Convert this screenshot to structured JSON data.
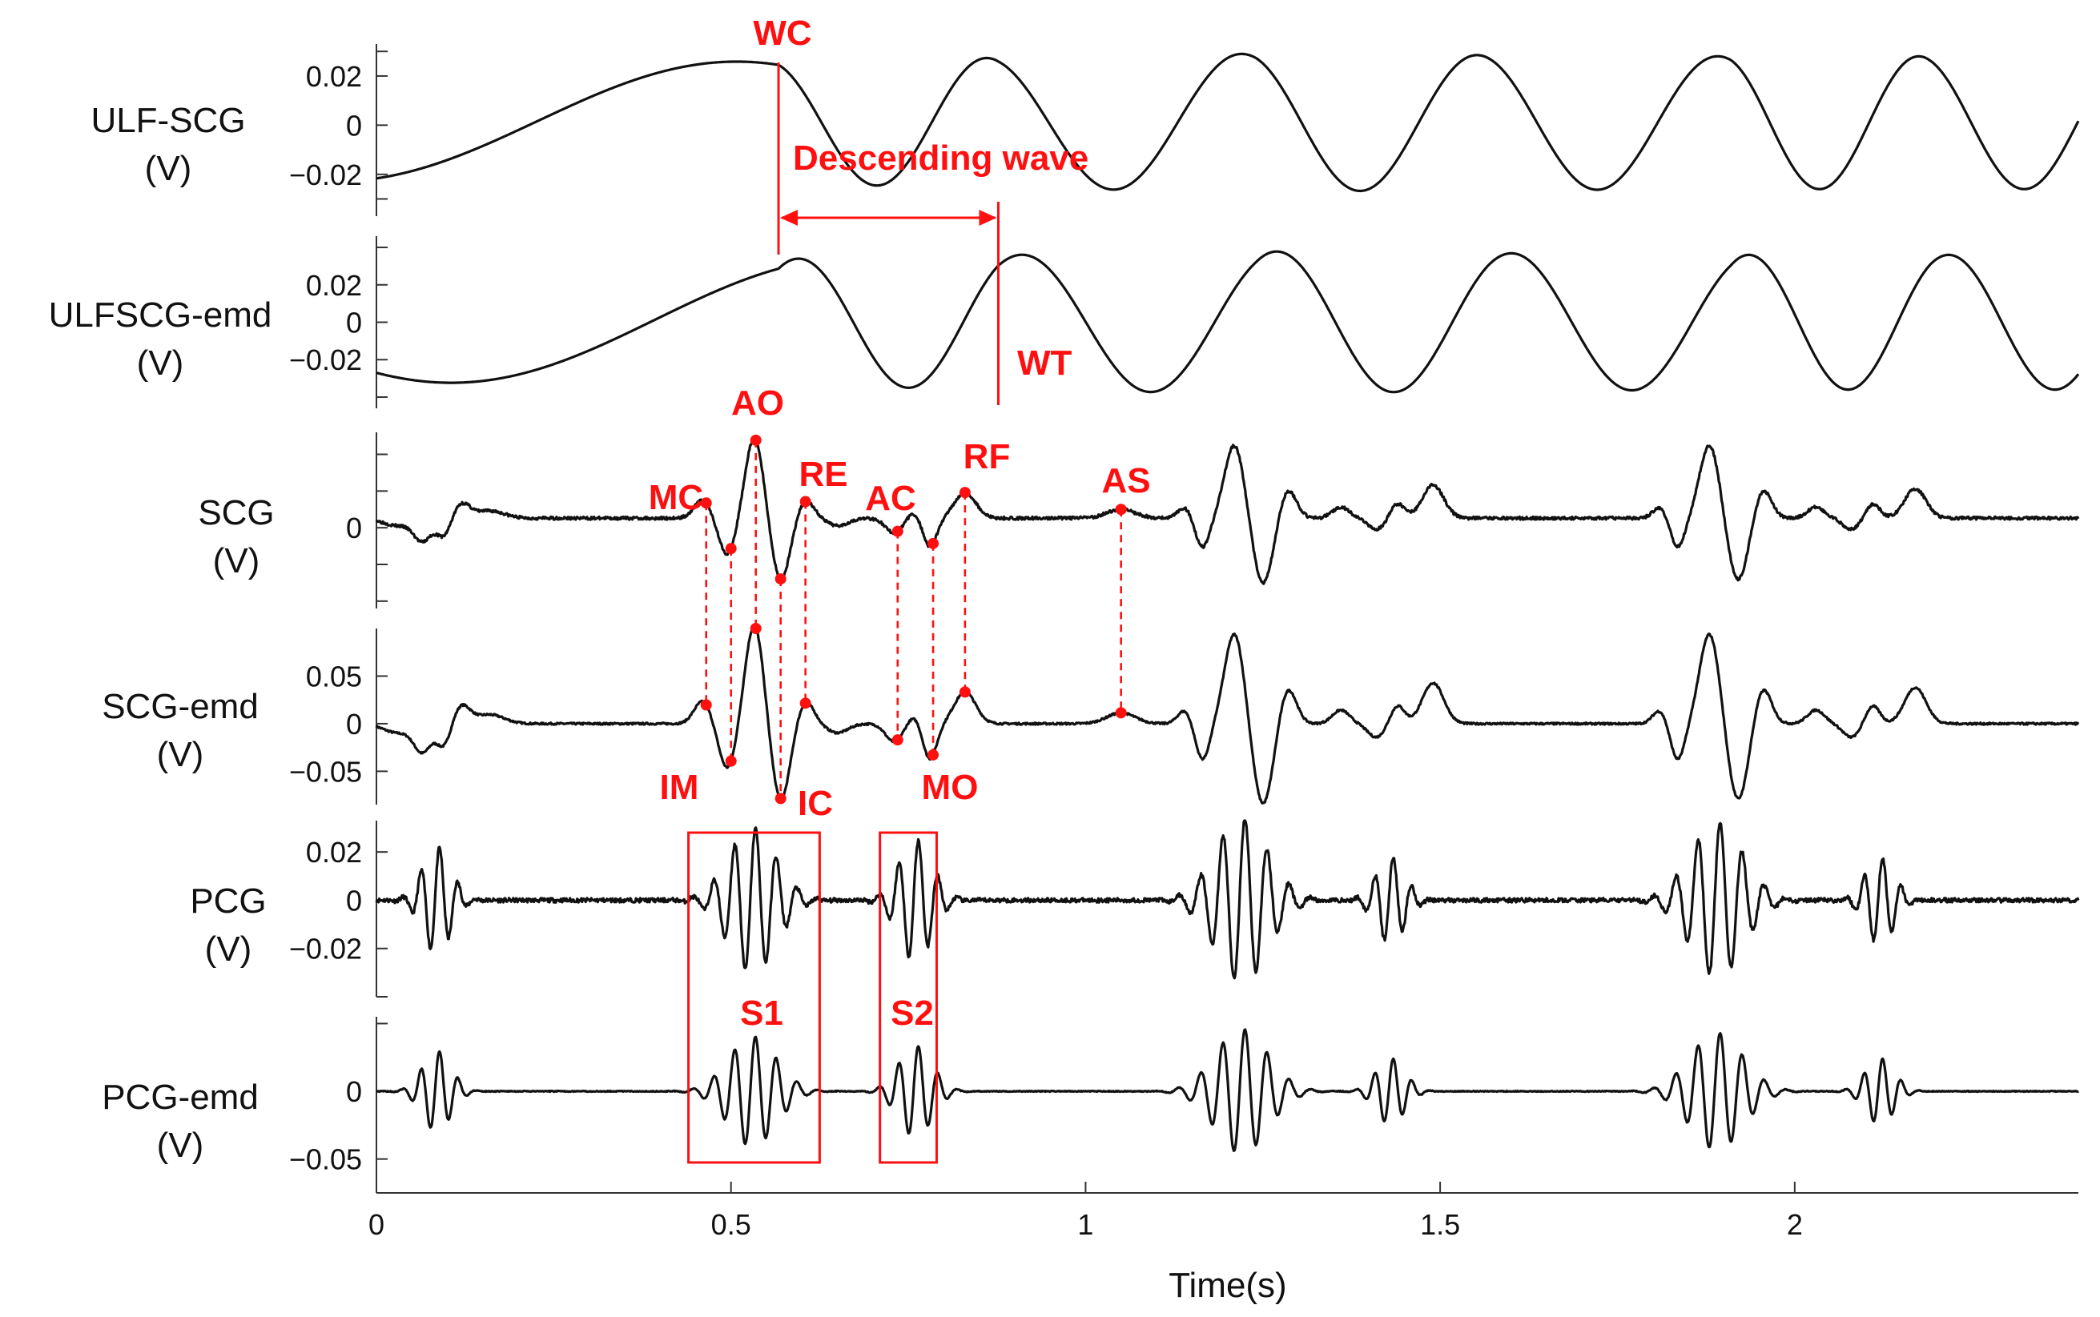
{
  "colors": {
    "signal": "#111111",
    "annotation": "#ff1010",
    "axis": "#333333"
  },
  "chart_data": {
    "type": "line",
    "xlabel": "Time(s)",
    "xlim": [
      0,
      2.4
    ],
    "x_ticks": [
      {
        "value": 0,
        "label": "0"
      },
      {
        "value": 0.5,
        "label": "0.5"
      },
      {
        "value": 1,
        "label": "1"
      },
      {
        "value": 1.5,
        "label": "1.5"
      },
      {
        "value": 2,
        "label": "2"
      }
    ],
    "panels": [
      {
        "id": "ulfscg",
        "name": "ULF-SCG",
        "unit": "(V)",
        "ylim": [
          -0.037,
          0.033
        ],
        "y_ticks": [
          {
            "value": 0.02,
            "label": "0.02"
          },
          {
            "value": 0,
            "label": "0"
          },
          {
            "value": -0.02,
            "label": "−0.02"
          }
        ],
        "y_minor": [
          0.03,
          -0.03
        ],
        "curve": {
          "kind": "sine",
          "mean": 0.001,
          "amp_points": [
            [
              0,
              0.024
            ],
            [
              0.6,
              0.025
            ],
            [
              1.2,
              0.028
            ],
            [
              1.9,
              0.027
            ],
            [
              2.4,
              0.027
            ]
          ],
          "phase_shift": 0.054,
          "knots": [
            [
              0,
              0
            ],
            [
              0.567,
              0.5
            ],
            [
              0.877,
              1.5
            ],
            [
              1.24,
              2.5
            ],
            [
              1.57,
              3.5
            ],
            [
              1.91,
              4.5
            ],
            [
              2.19,
              5.5
            ],
            [
              2.4,
              6.2
            ]
          ]
        }
      },
      {
        "id": "ulfscgemd",
        "name": "ULFSCG-emd",
        "unit": "(V)",
        "ylim": [
          -0.046,
          0.046
        ],
        "y_ticks": [
          {
            "value": 0.02,
            "label": "0.02"
          },
          {
            "value": 0,
            "label": "0"
          },
          {
            "value": -0.02,
            "label": "−0.02"
          }
        ],
        "y_minor": [
          0.04,
          -0.04
        ],
        "curve": {
          "kind": "sine",
          "mean": 0,
          "amp_points": [
            [
              0,
              0.032
            ],
            [
              0.6,
              0.034
            ],
            [
              1.2,
              0.038
            ],
            [
              1.9,
              0.036
            ],
            [
              2.4,
              0.036
            ]
          ],
          "phase_shift": -0.09,
          "knots": [
            [
              0,
              0
            ],
            [
              0.567,
              0.5
            ],
            [
              0.877,
              1.5
            ],
            [
              1.24,
              2.5
            ],
            [
              1.57,
              3.5
            ],
            [
              1.91,
              4.5
            ],
            [
              2.19,
              5.5
            ],
            [
              2.4,
              6.2
            ]
          ]
        }
      },
      {
        "id": "scg",
        "name": "SCG",
        "unit": "(V)",
        "ylim": [
          -0.11,
          0.13
        ],
        "y_ticks": [
          {
            "value": 0,
            "label": "0"
          }
        ],
        "y_minor": [
          0.1,
          0.05,
          -0.05,
          -0.1
        ],
        "curve": {
          "kind": "beats",
          "baseline": 0.013,
          "noise": 0.004,
          "seed": 3
        }
      },
      {
        "id": "scgemd",
        "name": "SCG-emd",
        "unit": "(V)",
        "ylim": [
          -0.085,
          0.1
        ],
        "y_ticks": [
          {
            "value": 0.05,
            "label": "0.05"
          },
          {
            "value": 0,
            "label": "0"
          },
          {
            "value": -0.05,
            "label": "−0.05"
          }
        ],
        "y_minor": [],
        "curve": {
          "kind": "beats",
          "baseline": 0,
          "noise": 0.002,
          "seed": 7
        }
      },
      {
        "id": "pcg",
        "name": "PCG",
        "unit": "(V)",
        "ylim": [
          -0.04,
          0.033
        ],
        "y_ticks": [
          {
            "value": 0.02,
            "label": "0.02"
          },
          {
            "value": 0,
            "label": "0"
          },
          {
            "value": -0.02,
            "label": "−0.02"
          }
        ],
        "y_minor": [
          -0.04
        ],
        "curve": {
          "kind": "sound",
          "baseline": 0,
          "noise": 0.0018,
          "seed": 11
        }
      },
      {
        "id": "pcgemd",
        "name": "PCG-emd",
        "unit": "(V)",
        "ylim": [
          -0.075,
          0.055
        ],
        "y_ticks": [
          {
            "value": 0,
            "label": "0"
          },
          {
            "value": -0.05,
            "label": "−0.05"
          }
        ],
        "y_minor": [
          0.05
        ],
        "curve": {
          "kind": "sound",
          "baseline": 0,
          "noise": 0.0006,
          "seed": 19
        }
      }
    ],
    "scg_beats": [
      {
        "t0": 0,
        "components": [
          [
            0.03,
            0.02,
            -0.01
          ],
          [
            0.065,
            0.012,
            -0.03
          ],
          [
            0.095,
            0.01,
            -0.025
          ],
          [
            0.12,
            0.012,
            0.02
          ],
          [
            0.16,
            0.02,
            0.01
          ]
        ]
      },
      {
        "t0": 0.46,
        "components": [
          [
            0.0,
            0.012,
            0.025
          ],
          [
            0.035,
            0.012,
            -0.05
          ],
          [
            0.073,
            0.013,
            0.11
          ],
          [
            0.11,
            0.013,
            -0.085
          ],
          [
            0.145,
            0.012,
            0.025
          ],
          [
            0.19,
            0.015,
            -0.01
          ],
          [
            0.27,
            0.012,
            -0.02
          ],
          [
            0.3,
            0.01,
            0.01
          ],
          [
            0.32,
            0.01,
            -0.04
          ],
          [
            0.37,
            0.015,
            0.035
          ],
          [
            0.59,
            0.02,
            0.012
          ]
        ]
      },
      {
        "t0": 1.14,
        "components": [
          [
            0.0,
            0.01,
            0.015
          ],
          [
            0.025,
            0.01,
            -0.04
          ],
          [
            0.07,
            0.014,
            0.1
          ],
          [
            0.11,
            0.014,
            -0.09
          ],
          [
            0.145,
            0.012,
            0.04
          ],
          [
            0.22,
            0.012,
            0.015
          ],
          [
            0.27,
            0.012,
            -0.015
          ],
          [
            0.3,
            0.01,
            0.02
          ],
          [
            0.35,
            0.015,
            0.045
          ]
        ]
      },
      {
        "t0": 1.81,
        "components": [
          [
            0.0,
            0.01,
            0.015
          ],
          [
            0.025,
            0.01,
            -0.04
          ],
          [
            0.07,
            0.014,
            0.1
          ],
          [
            0.11,
            0.014,
            -0.085
          ],
          [
            0.145,
            0.012,
            0.04
          ],
          [
            0.22,
            0.012,
            0.015
          ],
          [
            0.27,
            0.012,
            -0.015
          ],
          [
            0.3,
            0.01,
            0.02
          ],
          [
            0.36,
            0.015,
            0.04
          ]
        ]
      }
    ],
    "pcg_bursts": [
      {
        "center": 0.085,
        "width": 0.03,
        "amp": 0.022,
        "freq": 38
      },
      {
        "center": 0.53,
        "width": 0.05,
        "amp": 0.03,
        "freq": 34
      },
      {
        "center": 0.76,
        "width": 0.035,
        "amp": 0.025,
        "freq": 36
      },
      {
        "center": 1.22,
        "width": 0.055,
        "amp": 0.034,
        "freq": 32
      },
      {
        "center": 1.43,
        "width": 0.03,
        "amp": 0.018,
        "freq": 38
      },
      {
        "center": 1.89,
        "width": 0.055,
        "amp": 0.032,
        "freq": 32
      },
      {
        "center": 2.12,
        "width": 0.03,
        "amp": 0.018,
        "freq": 38
      }
    ],
    "annotations": {
      "labels": [
        {
          "id": "WC",
          "text": "WC"
        },
        {
          "id": "WT",
          "text": "WT"
        },
        {
          "id": "descending",
          "text": "Descending wave"
        },
        {
          "id": "AO",
          "text": "AO"
        },
        {
          "id": "MC",
          "text": "MC"
        },
        {
          "id": "RE",
          "text": "RE"
        },
        {
          "id": "AC",
          "text": "AC"
        },
        {
          "id": "RF",
          "text": "RF"
        },
        {
          "id": "AS",
          "text": "AS"
        },
        {
          "id": "IM",
          "text": "IM"
        },
        {
          "id": "IC",
          "text": "IC"
        },
        {
          "id": "MO",
          "text": "MO"
        },
        {
          "id": "S1",
          "text": "S1"
        },
        {
          "id": "S2",
          "text": "S2"
        }
      ],
      "wc_time": 0.567,
      "wt_time": 0.877,
      "event_times": [
        0.465,
        0.5,
        0.535,
        0.57,
        0.605,
        0.735,
        0.785,
        0.83,
        1.05
      ],
      "s1_window": [
        0.44,
        0.625
      ],
      "s2_window": [
        0.71,
        0.79
      ]
    }
  }
}
